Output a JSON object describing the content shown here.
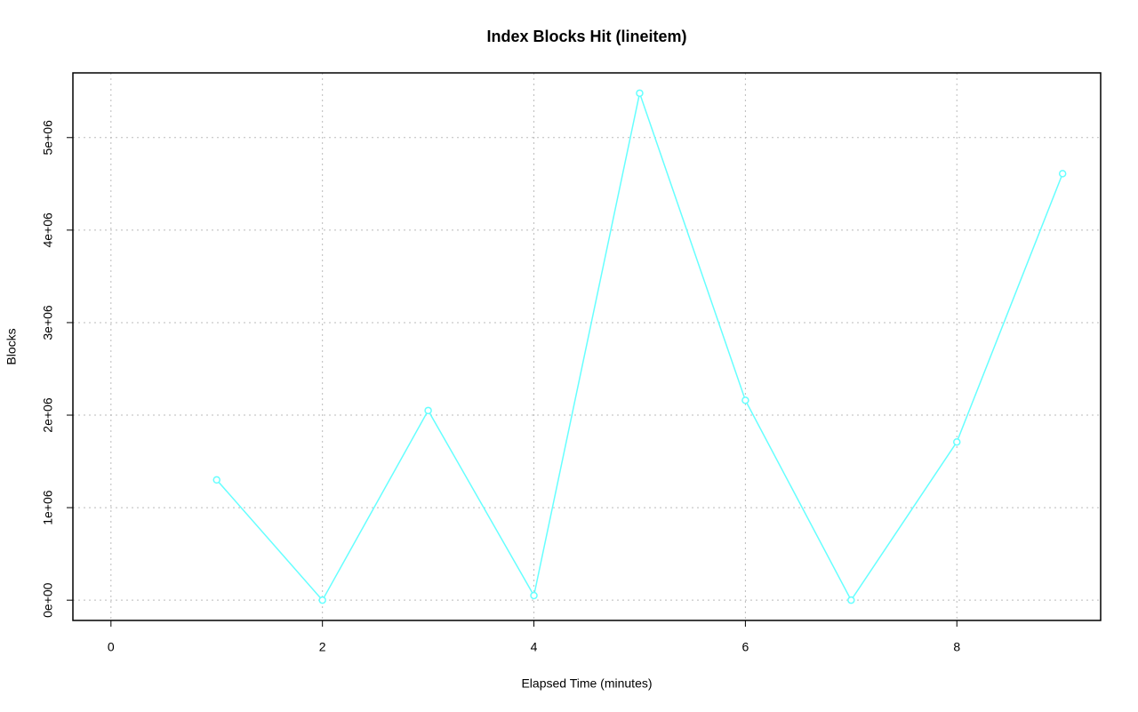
{
  "chart_data": {
    "type": "line",
    "title": "Index Blocks Hit (lineitem)",
    "x_label": "Elapsed Time (minutes)",
    "y_label": "Blocks",
    "x": [
      1,
      2,
      3,
      4,
      5,
      6,
      7,
      8,
      9
    ],
    "series": [
      {
        "name": "lineitem",
        "color": "#66ffff",
        "values": [
          1300000,
          0,
          2050000,
          50000,
          5480000,
          2160000,
          0,
          1710000,
          4610000
        ]
      }
    ],
    "xlim": [
      -0.36,
      9.36
    ],
    "xticks": [
      0,
      2,
      4,
      6,
      8
    ],
    "ylim": [
      -219200,
      5699200
    ],
    "yticks": [
      {
        "value": 0,
        "label": "0e+00"
      },
      {
        "value": 1000000,
        "label": "1e+06"
      },
      {
        "value": 2000000,
        "label": "2e+06"
      },
      {
        "value": 3000000,
        "label": "3e+06"
      },
      {
        "value": 4000000,
        "label": "4e+06"
      },
      {
        "value": 5000000,
        "label": "5e+06"
      }
    ],
    "grid": true
  }
}
